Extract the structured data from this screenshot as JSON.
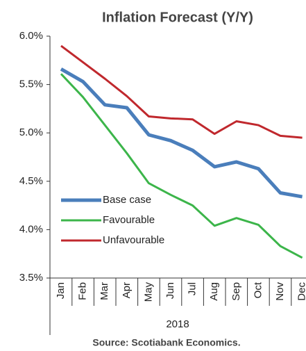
{
  "chart_data": {
    "type": "line",
    "title": "Inflation Forecast (Y/Y)",
    "x_label": "2018",
    "source": "Source: Scotiabank Economics.",
    "categories": [
      "Jan",
      "Feb",
      "Mar",
      "Apr",
      "May",
      "Jun",
      "Jul",
      "Aug",
      "Sep",
      "Oct",
      "Nov",
      "Dec"
    ],
    "series": [
      {
        "name": "Base case",
        "color": "#4a7ebb",
        "values": [
          5.66,
          5.53,
          5.29,
          5.26,
          4.98,
          4.92,
          4.82,
          4.65,
          4.7,
          4.63,
          4.38,
          4.34
        ]
      },
      {
        "name": "Favourable",
        "color": "#3cb54a",
        "values": [
          5.61,
          5.37,
          5.08,
          4.79,
          4.48,
          4.36,
          4.25,
          4.04,
          4.12,
          4.05,
          3.83,
          3.71
        ]
      },
      {
        "name": "Unfavourable",
        "color": "#c0282d",
        "values": [
          5.9,
          5.73,
          5.56,
          5.38,
          5.17,
          5.15,
          5.14,
          4.99,
          5.12,
          5.08,
          4.97,
          4.95
        ]
      }
    ],
    "ylim": [
      3.5,
      6.0
    ],
    "yticks": [
      {
        "value": 3.5,
        "label": "3.5%"
      },
      {
        "value": 4.0,
        "label": "4.0%"
      },
      {
        "value": 4.5,
        "label": "4.5%"
      },
      {
        "value": 5.0,
        "label": "5.0%"
      },
      {
        "value": 5.5,
        "label": "5.5%"
      },
      {
        "value": 6.0,
        "label": "6.0%"
      }
    ],
    "grid": false,
    "legend": "lower left"
  }
}
